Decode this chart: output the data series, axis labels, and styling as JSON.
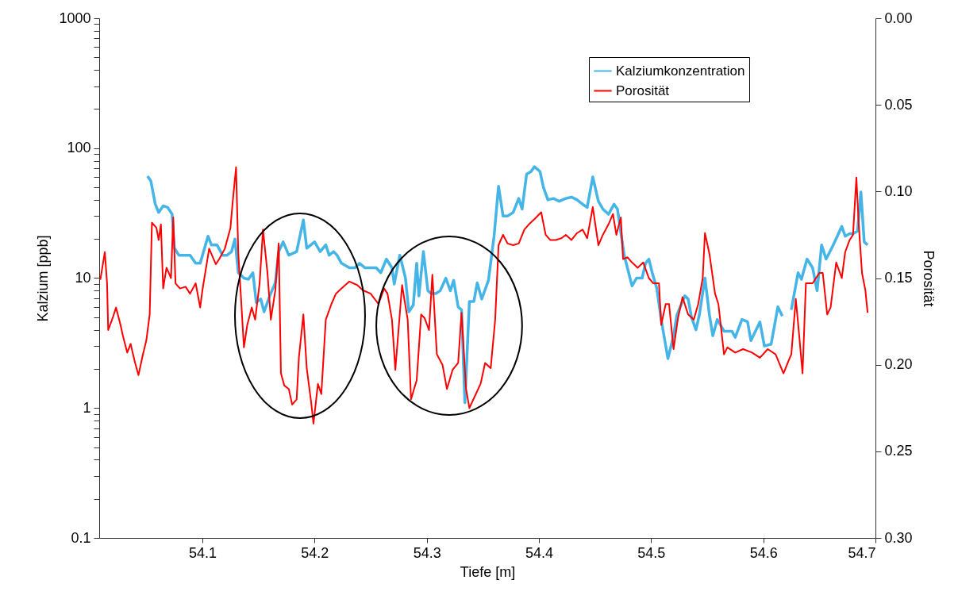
{
  "chart_data": {
    "type": "line",
    "xlabel": "Tiefe [m]",
    "ylabel": "Kalzium [ppb]",
    "y2label": "Porosität",
    "log": "y",
    "legend": "top right",
    "xlim": [
      54.008,
      54.7
    ],
    "xticks": [
      54.1,
      54.2,
      54.3,
      54.4,
      54.5,
      54.6,
      54.7
    ],
    "ylim": [
      0.1,
      1000
    ],
    "yticks": [
      {
        "value": 0.1,
        "label": "0.1"
      },
      {
        "value": 0.2,
        "label": null
      },
      {
        "value": 0.3,
        "label": null
      },
      {
        "value": 0.4,
        "label": null
      },
      {
        "value": 0.5,
        "label": null
      },
      {
        "value": 0.6,
        "label": null
      },
      {
        "value": 0.7,
        "label": null
      },
      {
        "value": 0.8,
        "label": null
      },
      {
        "value": 0.9,
        "label": null
      },
      {
        "value": 1,
        "label": "1"
      },
      {
        "value": 2,
        "label": null
      },
      {
        "value": 3,
        "label": null
      },
      {
        "value": 4,
        "label": null
      },
      {
        "value": 5,
        "label": null
      },
      {
        "value": 6,
        "label": null
      },
      {
        "value": 7,
        "label": null
      },
      {
        "value": 8,
        "label": null
      },
      {
        "value": 9,
        "label": null
      },
      {
        "value": 10,
        "label": "10"
      },
      {
        "value": 20,
        "label": null
      },
      {
        "value": 30,
        "label": null
      },
      {
        "value": 40,
        "label": null
      },
      {
        "value": 50,
        "label": null
      },
      {
        "value": 60,
        "label": null
      },
      {
        "value": 70,
        "label": null
      },
      {
        "value": 80,
        "label": null
      },
      {
        "value": 90,
        "label": null
      },
      {
        "value": 100,
        "label": "100"
      },
      {
        "value": 200,
        "label": null
      },
      {
        "value": 300,
        "label": null
      },
      {
        "value": 400,
        "label": null
      },
      {
        "value": 500,
        "label": null
      },
      {
        "value": 600,
        "label": null
      },
      {
        "value": 700,
        "label": null
      },
      {
        "value": 800,
        "label": null
      },
      {
        "value": 900,
        "label": null
      },
      {
        "value": 1000,
        "label": "1000"
      }
    ],
    "y2lim": [
      0.3,
      0.0
    ],
    "y2ticks": [
      {
        "value": 0,
        "label": "0.00"
      },
      {
        "value": 0.05,
        "label": "0.05"
      },
      {
        "value": 0.1,
        "label": "0.10"
      },
      {
        "value": 0.15,
        "label": "0.15"
      },
      {
        "value": 0.2,
        "label": "0.20"
      },
      {
        "value": 0.25,
        "label": "0.25"
      },
      {
        "value": 0.3,
        "label": "0.30"
      }
    ],
    "series": [
      {
        "name": "Kalziumkonzentration",
        "color": "#45b4e6",
        "x": [
          54.051,
          54.054,
          54.058,
          54.061,
          54.065,
          54.069,
          54.073,
          54.075,
          54.079,
          54.087,
          54.089,
          54.094,
          54.098,
          54.105,
          54.108,
          54.113,
          54.118,
          54.122,
          54.126,
          54.129,
          54.132,
          54.137,
          54.141,
          54.145,
          54.148,
          54.152,
          54.155,
          54.16,
          54.165,
          54.168,
          54.172,
          54.177,
          54.184,
          54.19,
          54.193,
          54.2,
          54.205,
          54.21,
          54.213,
          54.217,
          54.22,
          54.224,
          54.231,
          54.236,
          54.24,
          54.245,
          54.25,
          54.255,
          54.259,
          54.264,
          54.269,
          54.271,
          54.276,
          54.281,
          54.284,
          54.288,
          54.291,
          54.293,
          54.297,
          54.301,
          54.304,
          54.308,
          54.312,
          54.317,
          54.321,
          54.324,
          54.328,
          54.331,
          54.334,
          54.338,
          54.342,
          54.345,
          54.349,
          54.355,
          54.36,
          54.364,
          54.368,
          54.372,
          54.377,
          54.382,
          54.385,
          54.389,
          54.393,
          54.396,
          54.401,
          54.404,
          54.408,
          54.413,
          54.418,
          54.424,
          54.429,
          54.434,
          54.439,
          54.443,
          54.448,
          54.453,
          54.457,
          54.462,
          54.467,
          54.47,
          54.476,
          54.48,
          54.483,
          54.487,
          54.492,
          54.495,
          54.498,
          54.501,
          54.505,
          54.509,
          54.515,
          54.52,
          54.523,
          54.527,
          54.53,
          54.533,
          54.536,
          54.54,
          54.543,
          54.548,
          54.552,
          54.555,
          54.559,
          54.565,
          54.572,
          54.575,
          54.581,
          54.586,
          54.589,
          54.597,
          54.601,
          54.607,
          54.613,
          54.617,
          54.621,
          54.625,
          54.631,
          54.634,
          54.639,
          54.644,
          54.648,
          54.652,
          54.656,
          54.661,
          54.666,
          54.67,
          54.673,
          54.677,
          54.68,
          54.684,
          54.687,
          54.69,
          54.693
        ],
        "values": [
          61,
          56,
          37,
          32,
          36,
          35,
          31,
          17,
          15,
          15,
          15,
          13,
          13,
          21,
          18,
          18,
          15,
          15,
          16,
          20,
          11,
          10,
          9.8,
          11,
          6.5,
          6.9,
          5.5,
          7.3,
          9.2,
          16,
          19,
          15,
          16,
          28,
          17,
          19,
          16,
          18,
          15,
          16,
          15,
          13,
          12,
          12,
          13,
          12,
          12,
          12,
          11,
          14,
          12,
          9,
          15,
          10,
          5.5,
          6.2,
          13,
          7.3,
          16,
          8,
          7.6,
          7.6,
          8,
          10,
          8,
          9.6,
          6,
          5.7,
          1.1,
          6.6,
          6.6,
          9.2,
          6.9,
          9.6,
          21,
          51,
          30,
          30,
          32,
          41,
          34,
          63,
          66,
          72,
          66,
          50,
          40,
          41,
          39,
          41,
          42,
          40,
          37,
          35,
          60,
          39,
          34,
          31,
          37,
          34,
          15,
          11,
          8.7,
          10,
          10,
          13,
          14,
          11,
          8.4,
          4.8,
          2.4,
          3.6,
          5.2,
          6.3,
          7.3,
          6.9,
          5,
          4,
          5.2,
          10,
          5.2,
          3.6,
          4.8,
          3.9,
          3.9,
          3.5,
          4.8,
          4.6,
          3.3,
          4.6,
          3,
          3.1,
          6,
          5.1,
          null,
          5.7,
          11,
          9.8,
          14,
          12,
          8,
          18,
          14,
          17,
          21,
          25,
          21,
          22,
          22,
          23,
          46,
          19,
          18
        ]
      },
      {
        "name": "Porosität",
        "color": "#ff0000",
        "axis": "y2",
        "x": [
          54.009,
          54.013,
          54.015,
          54.016,
          54.02,
          54.023,
          54.027,
          54.029,
          54.033,
          54.036,
          54.04,
          54.043,
          54.047,
          54.05,
          54.053,
          54.055,
          54.059,
          54.061,
          54.063,
          54.065,
          54.068,
          54.072,
          54.074,
          54.076,
          54.08,
          54.085,
          54.089,
          54.094,
          54.098,
          54.1,
          54.106,
          54.112,
          54.115,
          54.12,
          54.125,
          54.127,
          54.13,
          54.132,
          54.134,
          54.137,
          54.14,
          54.144,
          54.147,
          54.151,
          54.154,
          54.158,
          54.161,
          54.165,
          54.168,
          54.17,
          54.173,
          54.177,
          54.18,
          54.184,
          54.186,
          54.19,
          54.193,
          54.197,
          54.199,
          54.203,
          54.206,
          54.21,
          54.215,
          54.219,
          54.224,
          54.231,
          54.238,
          54.243,
          54.25,
          54.257,
          54.262,
          54.265,
          54.269,
          54.272,
          54.278,
          54.283,
          54.286,
          54.291,
          54.295,
          54.298,
          54.302,
          54.305,
          54.309,
          54.314,
          54.318,
          54.323,
          54.328,
          54.331,
          54.335,
          54.338,
          54.343,
          54.348,
          54.352,
          54.357,
          54.361,
          54.364,
          54.368,
          54.372,
          54.377,
          54.382,
          54.387,
          54.391,
          54.396,
          54.402,
          54.406,
          54.41,
          54.415,
          54.42,
          54.424,
          54.429,
          54.434,
          54.439,
          54.443,
          54.448,
          54.453,
          54.457,
          54.462,
          54.466,
          54.469,
          54.473,
          54.475,
          54.479,
          54.483,
          54.488,
          54.493,
          54.498,
          54.502,
          54.507,
          54.509,
          54.513,
          54.516,
          54.52,
          54.524,
          54.528,
          54.533,
          54.538,
          54.542,
          54.546,
          54.548,
          54.552,
          54.557,
          54.56,
          54.565,
          54.568,
          54.575,
          54.582,
          54.59,
          54.597,
          54.604,
          54.611,
          54.618,
          54.623,
          54.625,
          54.629,
          54.632,
          54.635,
          54.638,
          54.644,
          54.65,
          54.653,
          54.657,
          54.66,
          54.665,
          54.67,
          54.673,
          54.677,
          54.68,
          54.683,
          54.685,
          54.688,
          54.691,
          54.693
        ],
        "values": [
          0.151,
          0.135,
          0.153,
          0.18,
          0.173,
          0.167,
          0.177,
          0.183,
          0.193,
          0.188,
          0.199,
          0.206,
          0.194,
          0.186,
          0.171,
          0.118,
          0.121,
          0.128,
          0.119,
          0.156,
          0.144,
          0.15,
          0.115,
          0.153,
          0.156,
          0.155,
          0.159,
          0.153,
          0.167,
          0.157,
          0.133,
          0.142,
          0.139,
          0.133,
          0.121,
          0.106,
          0.086,
          0.136,
          0.157,
          0.19,
          0.177,
          0.167,
          0.174,
          0.153,
          0.122,
          0.147,
          0.174,
          0.157,
          0.13,
          0.205,
          0.212,
          0.214,
          0.223,
          0.22,
          0.196,
          0.171,
          0.202,
          0.222,
          0.234,
          0.211,
          0.217,
          0.174,
          0.165,
          0.159,
          0.156,
          0.152,
          0.154,
          0.157,
          0.159,
          0.165,
          0.156,
          0.159,
          0.174,
          0.203,
          0.154,
          0.174,
          0.22,
          0.209,
          0.171,
          0.173,
          0.18,
          0.148,
          0.194,
          0.2,
          0.214,
          0.203,
          0.199,
          0.17,
          0.214,
          0.225,
          0.218,
          0.211,
          0.199,
          0.202,
          0.174,
          0.131,
          0.125,
          0.13,
          0.131,
          0.13,
          0.122,
          0.119,
          0.116,
          0.112,
          0.125,
          0.128,
          0.128,
          0.127,
          0.125,
          0.128,
          0.124,
          0.122,
          0.127,
          0.109,
          0.131,
          0.125,
          0.119,
          0.113,
          0.125,
          0.115,
          0.139,
          0.138,
          0.141,
          0.144,
          0.141,
          0.15,
          0.153,
          0.153,
          0.177,
          0.165,
          0.165,
          0.191,
          0.173,
          0.161,
          0.171,
          0.174,
          0.165,
          0.15,
          0.124,
          0.136,
          0.159,
          0.165,
          0.194,
          0.19,
          0.193,
          0.191,
          0.193,
          0.196,
          0.191,
          0.194,
          0.205,
          0.197,
          0.194,
          0.162,
          0.183,
          0.205,
          0.153,
          0.153,
          0.147,
          0.147,
          0.171,
          0.167,
          0.141,
          0.15,
          0.135,
          0.128,
          0.125,
          0.092,
          0.118,
          0.147,
          0.157,
          0.17
        ]
      }
    ]
  }
}
